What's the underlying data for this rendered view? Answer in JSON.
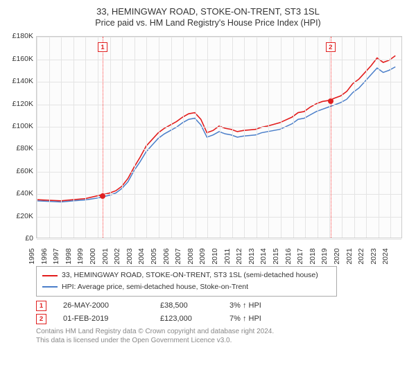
{
  "title": "33, HEMINGWAY ROAD, STOKE-ON-TRENT, ST3 1SL",
  "subtitle": "Price paid vs. HM Land Registry's House Price Index (HPI)",
  "chart": {
    "type": "line",
    "background_color": "#fcfcfc",
    "grid_color": "#e4e4e4",
    "border_color": "#cccccc",
    "x_years": [
      1995,
      1996,
      1997,
      1998,
      1999,
      2000,
      2001,
      2002,
      2003,
      2004,
      2005,
      2006,
      2007,
      2008,
      2009,
      2010,
      2011,
      2012,
      2013,
      2014,
      2015,
      2016,
      2017,
      2018,
      2019,
      2020,
      2021,
      2022,
      2023,
      2024
    ],
    "y_ticks": [
      0,
      20000,
      40000,
      60000,
      80000,
      100000,
      120000,
      140000,
      160000,
      180000
    ],
    "y_tick_labels": [
      "£0",
      "£20K",
      "£40K",
      "£60K",
      "£80K",
      "£100K",
      "£120K",
      "£140K",
      "£160K",
      "£180K"
    ],
    "ylim": [
      0,
      180000
    ],
    "xlim": [
      1995,
      2025
    ],
    "series": [
      {
        "name": "33, HEMINGWAY ROAD, STOKE-ON-TRENT, ST3 1SL (semi-detached house)",
        "color": "#e21b1b",
        "line_width": 1.6,
        "points": [
          [
            1995,
            34000
          ],
          [
            1996,
            33500
          ],
          [
            1997,
            33000
          ],
          [
            1998,
            34000
          ],
          [
            1999,
            35000
          ],
          [
            2000,
            37500
          ],
          [
            2000.4,
            38500
          ],
          [
            2001,
            40000
          ],
          [
            2001.5,
            42000
          ],
          [
            2002,
            46000
          ],
          [
            2002.5,
            53000
          ],
          [
            2003,
            63000
          ],
          [
            2003.5,
            72000
          ],
          [
            2004,
            82000
          ],
          [
            2004.5,
            88000
          ],
          [
            2005,
            94000
          ],
          [
            2005.5,
            98000
          ],
          [
            2006,
            101000
          ],
          [
            2006.5,
            104000
          ],
          [
            2007,
            108000
          ],
          [
            2007.5,
            111000
          ],
          [
            2008,
            112000
          ],
          [
            2008.5,
            106000
          ],
          [
            2009,
            94000
          ],
          [
            2009.5,
            96000
          ],
          [
            2010,
            100000
          ],
          [
            2010.5,
            98000
          ],
          [
            2011,
            97000
          ],
          [
            2011.5,
            95000
          ],
          [
            2012,
            96000
          ],
          [
            2013,
            97000
          ],
          [
            2013.5,
            99000
          ],
          [
            2014,
            100000
          ],
          [
            2015,
            103000
          ],
          [
            2016,
            108000
          ],
          [
            2016.5,
            112000
          ],
          [
            2017,
            113000
          ],
          [
            2017.5,
            117000
          ],
          [
            2018,
            120000
          ],
          [
            2018.5,
            122000
          ],
          [
            2019.08,
            123000
          ],
          [
            2019.5,
            125000
          ],
          [
            2020,
            127000
          ],
          [
            2020.5,
            131000
          ],
          [
            2021,
            138000
          ],
          [
            2021.5,
            142000
          ],
          [
            2022,
            148000
          ],
          [
            2022.5,
            154000
          ],
          [
            2023,
            161000
          ],
          [
            2023.5,
            157000
          ],
          [
            2024,
            159000
          ],
          [
            2024.5,
            163000
          ]
        ]
      },
      {
        "name": "HPI: Average price, semi-detached house, Stoke-on-Trent",
        "color": "#4a7ec9",
        "line_width": 1.5,
        "points": [
          [
            1995,
            33000
          ],
          [
            1996,
            32500
          ],
          [
            1997,
            32000
          ],
          [
            1998,
            33000
          ],
          [
            1999,
            33800
          ],
          [
            2000,
            35500
          ],
          [
            2001,
            38000
          ],
          [
            2001.5,
            40000
          ],
          [
            2002,
            44000
          ],
          [
            2002.5,
            50000
          ],
          [
            2003,
            60000
          ],
          [
            2003.5,
            68000
          ],
          [
            2004,
            77000
          ],
          [
            2004.5,
            83000
          ],
          [
            2005,
            89000
          ],
          [
            2005.5,
            93000
          ],
          [
            2006,
            96000
          ],
          [
            2006.5,
            99000
          ],
          [
            2007,
            103000
          ],
          [
            2007.5,
            106000
          ],
          [
            2008,
            107000
          ],
          [
            2008.5,
            101000
          ],
          [
            2009,
            90000
          ],
          [
            2009.5,
            92000
          ],
          [
            2010,
            95000
          ],
          [
            2010.5,
            93000
          ],
          [
            2011,
            92000
          ],
          [
            2011.5,
            90000
          ],
          [
            2012,
            91000
          ],
          [
            2013,
            92000
          ],
          [
            2013.5,
            94000
          ],
          [
            2014,
            95000
          ],
          [
            2015,
            97000
          ],
          [
            2016,
            102000
          ],
          [
            2016.5,
            106000
          ],
          [
            2017,
            107000
          ],
          [
            2017.5,
            110000
          ],
          [
            2018,
            113000
          ],
          [
            2018.5,
            115000
          ],
          [
            2019,
            117000
          ],
          [
            2019.5,
            119000
          ],
          [
            2020,
            121000
          ],
          [
            2020.5,
            124000
          ],
          [
            2021,
            130000
          ],
          [
            2021.5,
            134000
          ],
          [
            2022,
            140000
          ],
          [
            2022.5,
            146000
          ],
          [
            2023,
            152000
          ],
          [
            2023.5,
            148000
          ],
          [
            2024,
            150000
          ],
          [
            2024.5,
            153000
          ]
        ]
      }
    ],
    "markers": [
      {
        "n": "1",
        "x": 2000.4,
        "y": 38500
      },
      {
        "n": "2",
        "x": 2019.08,
        "y": 123000
      }
    ]
  },
  "legend": [
    {
      "color": "#e21b1b",
      "label": "33, HEMINGWAY ROAD, STOKE-ON-TRENT, ST3 1SL (semi-detached house)"
    },
    {
      "color": "#4a7ec9",
      "label": "HPI: Average price, semi-detached house, Stoke-on-Trent"
    }
  ],
  "sales": [
    {
      "n": "1",
      "date": "26-MAY-2000",
      "price": "£38,500",
      "pct": "3% ↑ HPI"
    },
    {
      "n": "2",
      "date": "01-FEB-2019",
      "price": "£123,000",
      "pct": "7% ↑ HPI"
    }
  ],
  "footer1": "Contains HM Land Registry data © Crown copyright and database right 2024.",
  "footer2": "This data is licensed under the Open Government Licence v3.0."
}
